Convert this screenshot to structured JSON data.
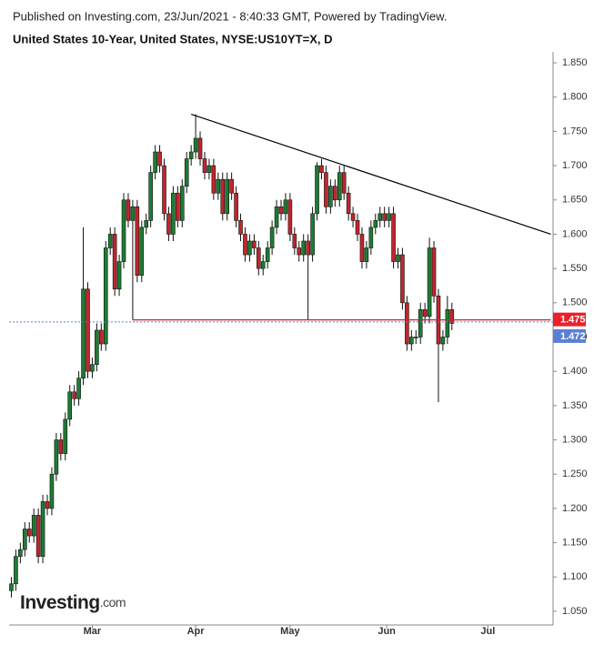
{
  "header": {
    "published": "Published on Investing.com, 23/Jun/2021 - 8:40:33 GMT, Powered by TradingView.",
    "instrument": "United States 10-Year, United States, NYSE:US10YT=X, D"
  },
  "logo": {
    "brand": "Investing",
    "suffix": ".com"
  },
  "chart_data": {
    "type": "candlestick",
    "x": [
      0,
      1,
      2,
      3,
      4,
      5,
      6,
      7,
      8,
      9,
      10,
      11,
      12,
      13,
      14,
      15,
      16,
      17,
      18,
      19,
      20,
      21,
      22,
      23,
      24,
      25,
      26,
      27,
      28,
      29,
      30,
      31,
      32,
      33,
      34,
      35,
      36,
      37,
      38,
      39,
      40,
      41,
      42,
      43,
      44,
      45,
      46,
      47,
      48,
      49,
      50,
      51,
      52,
      53,
      54,
      55,
      56,
      57,
      58,
      59,
      60,
      61,
      62,
      63,
      64,
      65,
      66,
      67,
      68,
      69,
      70,
      71,
      72,
      73,
      74,
      75,
      76,
      77,
      78,
      79,
      80,
      81,
      82,
      83,
      84,
      85,
      86,
      87,
      88,
      89,
      90,
      91,
      92,
      93,
      94,
      95,
      96,
      97,
      98
    ],
    "open": [
      1.08,
      1.09,
      1.13,
      1.14,
      1.17,
      1.16,
      1.19,
      1.13,
      1.21,
      1.2,
      1.25,
      1.3,
      1.28,
      1.33,
      1.37,
      1.36,
      1.39,
      1.52,
      1.4,
      1.41,
      1.46,
      1.44,
      1.58,
      1.6,
      1.52,
      1.56,
      1.65,
      1.62,
      1.64,
      1.54,
      1.61,
      1.62,
      1.69,
      1.72,
      1.7,
      1.63,
      1.6,
      1.66,
      1.62,
      1.67,
      1.71,
      1.72,
      1.74,
      1.71,
      1.69,
      1.7,
      1.66,
      1.68,
      1.63,
      1.68,
      1.66,
      1.62,
      1.6,
      1.57,
      1.59,
      1.58,
      1.55,
      1.56,
      1.58,
      1.61,
      1.64,
      1.63,
      1.65,
      1.6,
      1.58,
      1.57,
      1.59,
      1.57,
      1.63,
      1.7,
      1.69,
      1.64,
      1.67,
      1.65,
      1.69,
      1.66,
      1.63,
      1.62,
      1.6,
      1.56,
      1.58,
      1.61,
      1.62,
      1.63,
      1.62,
      1.63,
      1.56,
      1.57,
      1.5,
      1.44,
      1.45,
      1.45,
      1.49,
      1.48,
      1.58,
      1.51,
      1.44,
      1.45,
      1.49
    ],
    "high": [
      1.1,
      1.14,
      1.15,
      1.18,
      1.18,
      1.2,
      1.2,
      1.22,
      1.22,
      1.26,
      1.31,
      1.31,
      1.34,
      1.38,
      1.38,
      1.4,
      1.61,
      1.53,
      1.42,
      1.47,
      1.47,
      1.59,
      1.61,
      1.61,
      1.57,
      1.66,
      1.66,
      1.65,
      1.65,
      1.62,
      1.63,
      1.7,
      1.73,
      1.73,
      1.71,
      1.64,
      1.67,
      1.67,
      1.68,
      1.72,
      1.73,
      1.775,
      1.75,
      1.72,
      1.71,
      1.71,
      1.69,
      1.69,
      1.69,
      1.69,
      1.67,
      1.63,
      1.61,
      1.6,
      1.6,
      1.59,
      1.57,
      1.59,
      1.62,
      1.65,
      1.65,
      1.66,
      1.66,
      1.61,
      1.59,
      1.6,
      1.6,
      1.64,
      1.705,
      1.71,
      1.7,
      1.68,
      1.68,
      1.7,
      1.7,
      1.67,
      1.64,
      1.63,
      1.61,
      1.59,
      1.62,
      1.63,
      1.64,
      1.64,
      1.64,
      1.64,
      1.58,
      1.58,
      1.51,
      1.46,
      1.46,
      1.5,
      1.5,
      1.595,
      1.59,
      1.52,
      1.46,
      1.51,
      1.5
    ],
    "low": [
      1.07,
      1.08,
      1.12,
      1.13,
      1.15,
      1.15,
      1.12,
      1.12,
      1.19,
      1.19,
      1.24,
      1.27,
      1.27,
      1.32,
      1.35,
      1.35,
      1.38,
      1.39,
      1.39,
      1.4,
      1.43,
      1.43,
      1.57,
      1.51,
      1.51,
      1.55,
      1.61,
      1.475,
      1.53,
      1.53,
      1.6,
      1.61,
      1.68,
      1.69,
      1.62,
      1.59,
      1.59,
      1.61,
      1.61,
      1.66,
      1.7,
      1.71,
      1.7,
      1.68,
      1.68,
      1.65,
      1.65,
      1.62,
      1.62,
      1.65,
      1.61,
      1.59,
      1.56,
      1.56,
      1.57,
      1.54,
      1.54,
      1.55,
      1.57,
      1.6,
      1.62,
      1.62,
      1.59,
      1.57,
      1.56,
      1.56,
      1.475,
      1.56,
      1.62,
      1.68,
      1.63,
      1.63,
      1.64,
      1.64,
      1.65,
      1.62,
      1.61,
      1.59,
      1.55,
      1.55,
      1.57,
      1.6,
      1.61,
      1.61,
      1.61,
      1.55,
      1.55,
      1.49,
      1.43,
      1.43,
      1.44,
      1.44,
      1.47,
      1.47,
      1.5,
      1.355,
      1.43,
      1.44,
      1.46
    ],
    "close": [
      1.09,
      1.13,
      1.14,
      1.17,
      1.16,
      1.19,
      1.13,
      1.21,
      1.2,
      1.25,
      1.3,
      1.28,
      1.33,
      1.37,
      1.36,
      1.39,
      1.52,
      1.4,
      1.41,
      1.46,
      1.44,
      1.58,
      1.6,
      1.52,
      1.56,
      1.65,
      1.62,
      1.64,
      1.54,
      1.61,
      1.62,
      1.69,
      1.72,
      1.7,
      1.63,
      1.6,
      1.66,
      1.62,
      1.67,
      1.71,
      1.72,
      1.74,
      1.71,
      1.69,
      1.7,
      1.66,
      1.68,
      1.63,
      1.68,
      1.66,
      1.62,
      1.6,
      1.57,
      1.59,
      1.58,
      1.55,
      1.56,
      1.58,
      1.61,
      1.64,
      1.63,
      1.65,
      1.6,
      1.58,
      1.57,
      1.59,
      1.57,
      1.63,
      1.7,
      1.69,
      1.64,
      1.67,
      1.65,
      1.69,
      1.66,
      1.63,
      1.62,
      1.6,
      1.56,
      1.58,
      1.61,
      1.62,
      1.63,
      1.62,
      1.63,
      1.56,
      1.57,
      1.5,
      1.44,
      1.45,
      1.45,
      1.49,
      1.48,
      1.58,
      1.51,
      1.44,
      1.45,
      1.49,
      1.47
    ],
    "up_color": "#1e7b34",
    "down_color": "#c0262d",
    "xlim": [
      -0.5,
      120.5
    ],
    "xticks": [
      {
        "value": 18,
        "label": "Mar"
      },
      {
        "value": 41,
        "label": "Apr"
      },
      {
        "value": 62,
        "label": "May"
      },
      {
        "value": 83.5,
        "label": "Jun"
      },
      {
        "value": 106,
        "label": "Jul"
      }
    ],
    "ylim": [
      1.03,
      1.866
    ],
    "yticks": [
      {
        "value": 1.05,
        "label": "1.050"
      },
      {
        "value": 1.1,
        "label": "1.100"
      },
      {
        "value": 1.15,
        "label": "1.150"
      },
      {
        "value": 1.2,
        "label": "1.200"
      },
      {
        "value": 1.25,
        "label": "1.250"
      },
      {
        "value": 1.3,
        "label": "1.300"
      },
      {
        "value": 1.35,
        "label": "1.350"
      },
      {
        "value": 1.4,
        "label": "1.400"
      },
      {
        "value": 1.45,
        "label": "1.450"
      },
      {
        "value": 1.5,
        "label": "1.500"
      },
      {
        "value": 1.55,
        "label": "1.550"
      },
      {
        "value": 1.6,
        "label": "1.600"
      },
      {
        "value": 1.65,
        "label": "1.650"
      },
      {
        "value": 1.7,
        "label": "1.700"
      },
      {
        "value": 1.75,
        "label": "1.750"
      },
      {
        "value": 1.8,
        "label": "1.800"
      },
      {
        "value": 1.85,
        "label": "1.850"
      }
    ],
    "resistance": {
      "x": [
        40,
        120
      ],
      "y": [
        1.775,
        1.6
      ],
      "color": "#000000"
    },
    "support": {
      "x": [
        27,
        120
      ],
      "y": [
        1.475,
        1.475
      ],
      "color": "#c0262d"
    },
    "markers": [
      {
        "value": 1.475,
        "color": "#e8202a"
      },
      {
        "value": 1.472,
        "color": "#5b7fd6"
      }
    ]
  }
}
